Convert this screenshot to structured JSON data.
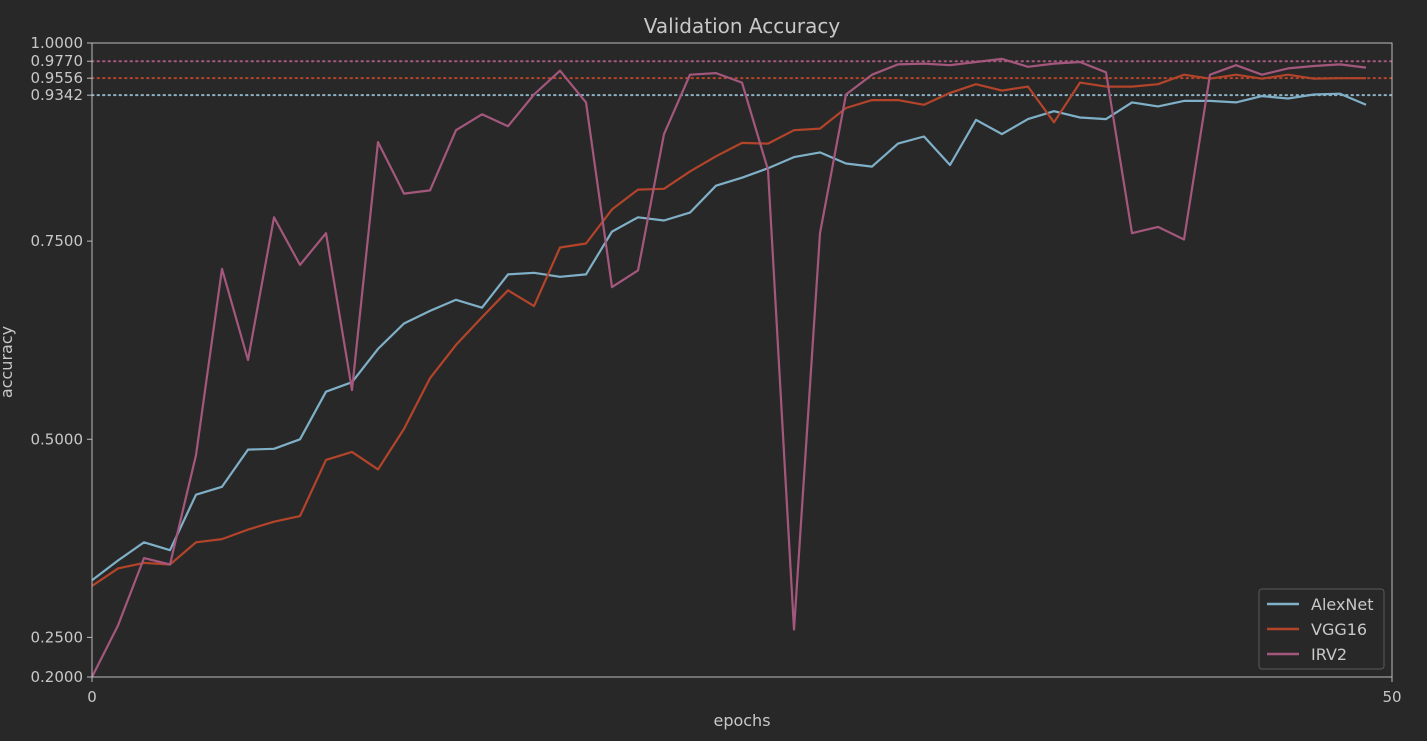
{
  "chart_data": {
    "type": "line",
    "title": "Validation Accuracy",
    "xlabel": "epochs",
    "ylabel": "accuracy",
    "xlim": [
      0,
      50
    ],
    "ylim": [
      0.2,
      1.0
    ],
    "x_ticks": [
      "0",
      "50"
    ],
    "y_ticks": [
      {
        "value": 1.0,
        "label": "1.0000"
      },
      {
        "value": 0.977,
        "label": "0.9770"
      },
      {
        "value": 0.9556,
        "label": "0.9556"
      },
      {
        "value": 0.9342,
        "label": "0.9342"
      },
      {
        "value": 0.75,
        "label": "0.7500"
      },
      {
        "value": 0.5,
        "label": "0.5000"
      },
      {
        "value": 0.25,
        "label": "0.2500"
      },
      {
        "value": 0.2,
        "label": "0.2000"
      }
    ],
    "grid": false,
    "legend_position": "bottom-right",
    "reference_lines": [
      {
        "y": 0.977,
        "color": "#a4577d",
        "style": "dotted"
      },
      {
        "y": 0.9556,
        "color": "#b3442a",
        "style": "dotted"
      },
      {
        "y": 0.9342,
        "color": "#8db3c9",
        "style": "dotted"
      }
    ],
    "x": [
      0,
      1,
      2,
      3,
      4,
      5,
      6,
      7,
      8,
      9,
      10,
      11,
      12,
      13,
      14,
      15,
      16,
      17,
      18,
      19,
      20,
      21,
      22,
      23,
      24,
      25,
      26,
      27,
      28,
      29,
      30,
      31,
      32,
      33,
      34,
      35,
      36,
      37,
      38,
      39,
      40,
      41,
      42,
      43,
      44,
      45,
      46,
      47,
      48,
      49
    ],
    "series": [
      {
        "name": "AlexNet",
        "color": "#7fb0c8",
        "values": [
          0.322,
          0.347,
          0.37,
          0.36,
          0.43,
          0.44,
          0.487,
          0.488,
          0.5,
          0.56,
          0.572,
          0.614,
          0.646,
          0.662,
          0.676,
          0.666,
          0.708,
          0.71,
          0.705,
          0.708,
          0.762,
          0.78,
          0.776,
          0.786,
          0.82,
          0.83,
          0.842,
          0.856,
          0.862,
          0.848,
          0.844,
          0.873,
          0.882,
          0.846,
          0.903,
          0.885,
          0.904,
          0.914,
          0.906,
          0.904,
          0.925,
          0.92,
          0.927,
          0.927,
          0.925,
          0.933,
          0.93,
          0.935,
          0.936,
          0.922
        ]
      },
      {
        "name": "VGG16",
        "color": "#b3442a",
        "values": [
          0.315,
          0.337,
          0.344,
          0.342,
          0.37,
          0.374,
          0.386,
          0.396,
          0.403,
          0.474,
          0.484,
          0.462,
          0.513,
          0.577,
          0.619,
          0.654,
          0.688,
          0.668,
          0.742,
          0.747,
          0.79,
          0.815,
          0.816,
          0.838,
          0.857,
          0.874,
          0.873,
          0.89,
          0.892,
          0.918,
          0.928,
          0.928,
          0.922,
          0.937,
          0.948,
          0.94,
          0.945,
          0.9,
          0.95,
          0.945,
          0.945,
          0.948,
          0.96,
          0.955,
          0.96,
          0.955,
          0.96,
          0.955,
          0.9556,
          0.9556
        ]
      },
      {
        "name": "IRV2",
        "color": "#a4577d",
        "values": [
          0.2,
          0.265,
          0.35,
          0.342,
          0.48,
          0.715,
          0.6,
          0.78,
          0.72,
          0.76,
          0.562,
          0.875,
          0.81,
          0.814,
          0.89,
          0.91,
          0.895,
          0.935,
          0.965,
          0.925,
          0.692,
          0.713,
          0.885,
          0.96,
          0.962,
          0.95,
          0.84,
          0.26,
          0.76,
          0.935,
          0.96,
          0.973,
          0.974,
          0.972,
          0.976,
          0.98,
          0.97,
          0.974,
          0.976,
          0.963,
          0.76,
          0.768,
          0.752,
          0.96,
          0.972,
          0.96,
          0.968,
          0.971,
          0.973,
          0.969
        ]
      }
    ]
  }
}
